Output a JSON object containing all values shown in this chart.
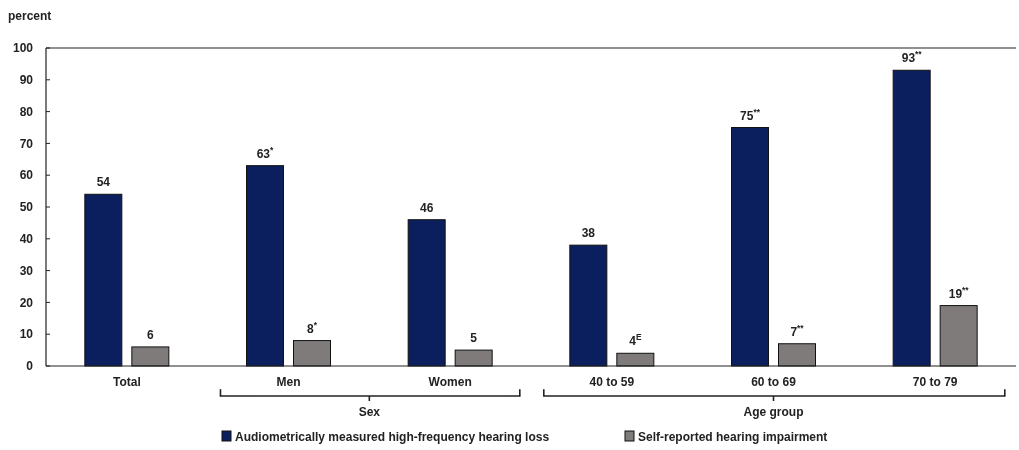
{
  "chart_data": {
    "type": "bar",
    "ylabel": "percent",
    "categories": [
      "Total",
      "Men",
      "Women",
      "40 to 59",
      "60 to 69",
      "70 to 79"
    ],
    "series": [
      {
        "name": "Audiometrically measured high-frequency hearing loss",
        "color": "#0b1f5e",
        "values": [
          54,
          63,
          46,
          38,
          75,
          93
        ],
        "value_labels": [
          "54",
          "63$^{*}$",
          "46",
          "38",
          "75$^{**}$",
          "93$^{**}$"
        ]
      },
      {
        "name": "Self-reported hearing impairment",
        "color": "#7f7b7b",
        "values": [
          6,
          8,
          5,
          4,
          7,
          19
        ],
        "value_labels": [
          "6",
          "8$^{*}$",
          "5",
          "4$^{E}$",
          "7$^{**}$",
          "19$^{**}$"
        ]
      }
    ],
    "ylim": [
      0,
      100
    ],
    "yticks": [
      0,
      10,
      20,
      30,
      40,
      50,
      60,
      70,
      80,
      90,
      100
    ],
    "grid": false,
    "legend": "bottom",
    "annotations": [
      "Sex",
      "Age group"
    ]
  }
}
